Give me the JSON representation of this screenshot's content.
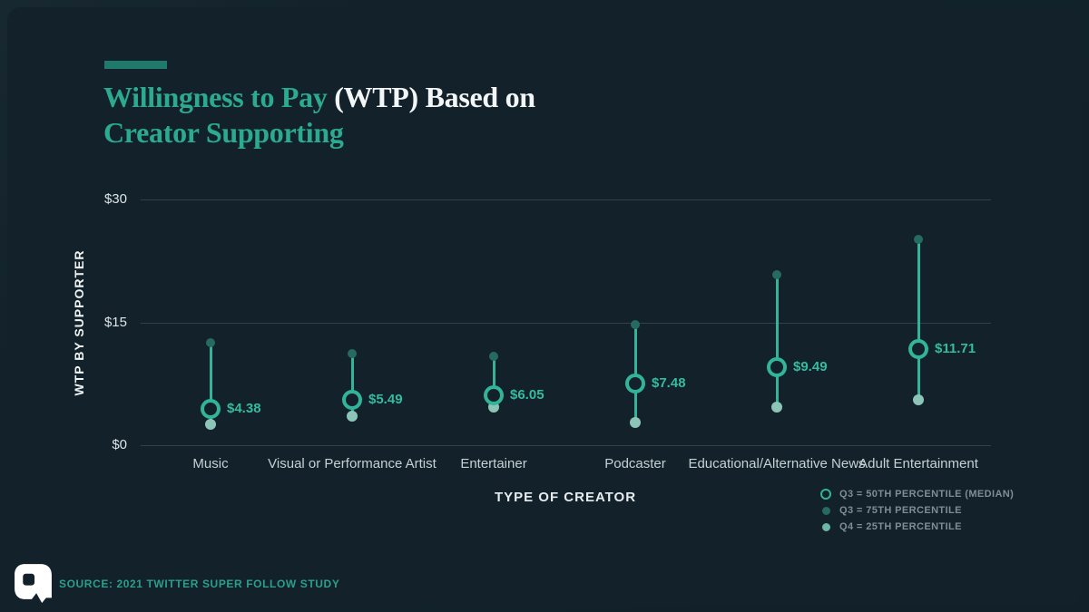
{
  "title": {
    "lead": "Willingness to Pay",
    "rest": " (WTP) Based on",
    "line2": "Creator Supporting"
  },
  "source": "SOURCE: 2021 TWITTER SUPER FOLLOW STUDY",
  "colors": {
    "background": "#12212a",
    "accent_bar": "#1f7a6b",
    "title_teal": "#2caa90",
    "title_white": "#f3f6f6",
    "marker_teal": "#31b498",
    "upper_dot": "#266a60",
    "lower_dot": "#8cc5b7",
    "value_label": "#35bb9e",
    "grid": "#3a4a52",
    "tick_text": "#dce4e7",
    "category_text": "#c6d1d4",
    "legend_text": "#7e8f94",
    "source_text": "#2b9f8b"
  },
  "chart_data": {
    "type": "scatter",
    "variant": "vertical-range-dot",
    "title": "Willingness to Pay (WTP) Based on Creator Supporting",
    "xlabel": "TYPE OF CREATOR",
    "ylabel": "WTP BY SUPPORTER",
    "ylim": [
      0,
      30
    ],
    "yticks": [
      {
        "value": 0,
        "label": "$0"
      },
      {
        "value": 15,
        "label": "$15"
      },
      {
        "value": 30,
        "label": "$30"
      }
    ],
    "grid": true,
    "legend_position": "bottom-right",
    "categories": [
      "Music",
      "Visual or Performance Artist",
      "Entertainer",
      "Podcaster",
      "Educational/Alternative News",
      "Adult Entertainment"
    ],
    "series": [
      {
        "name": "Q3 = 50TH PERCENTILE (MEDIAN)",
        "role": "median",
        "marker": "open-circle",
        "values": [
          4.38,
          5.49,
          6.05,
          7.48,
          9.49,
          11.71
        ],
        "labels": [
          "$4.38",
          "$5.49",
          "$6.05",
          "$7.48",
          "$9.49",
          "$11.71"
        ]
      },
      {
        "name": "Q3 = 75TH PERCENTILE",
        "role": "upper",
        "marker": "dot-dark",
        "values": [
          12.5,
          11.2,
          10.9,
          14.7,
          20.8,
          25.1
        ]
      },
      {
        "name": "Q4 = 25TH PERCENTILE",
        "role": "lower",
        "marker": "dot-light",
        "values": [
          2.5,
          3.5,
          4.7,
          2.8,
          4.7,
          5.5
        ]
      }
    ]
  }
}
